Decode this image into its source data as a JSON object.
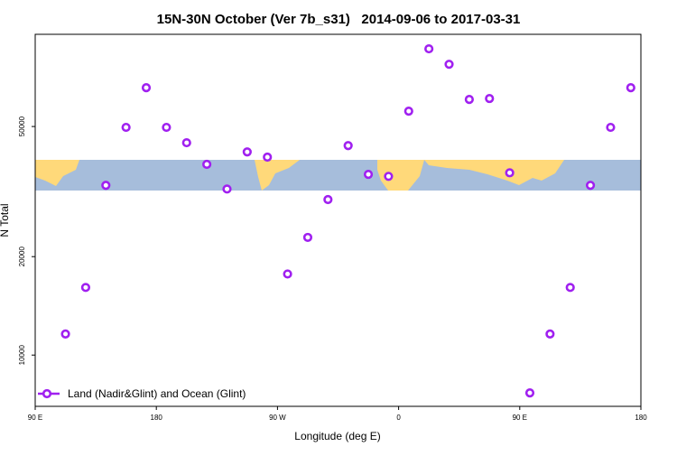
{
  "chart_data": {
    "type": "scatter",
    "title": "15N-30N October (Ver 7b_s31)   2014-09-06 to 2017-03-31",
    "x_label": "Longitude (deg E)",
    "y_label": "N Total",
    "xlim": [
      90,
      540
    ],
    "xticks": [
      {
        "value": 90,
        "label": "90 E"
      },
      {
        "value": 180,
        "label": "180"
      },
      {
        "value": 270,
        "label": "90 W"
      },
      {
        "value": 360,
        "label": "0"
      },
      {
        "value": 450,
        "label": "90 E"
      },
      {
        "value": 540,
        "label": "180"
      }
    ],
    "ylim": [
      6970,
      95700
    ],
    "y_log": true,
    "yticks": [
      10000,
      20000,
      50000
    ],
    "legend_position": "lower left",
    "series": [
      {
        "name": "Land (Nadir&Glint) and Ocean (Glint)",
        "color": "#a020f0",
        "x": [
          112.5,
          127.5,
          142.5,
          157.5,
          172.5,
          187.5,
          202.5,
          217.5,
          232.5,
          247.5,
          262.5,
          277.5,
          292.5,
          307.5,
          322.5,
          337.5,
          352.5,
          367.5,
          382.5,
          397.5,
          412.5,
          427.5,
          442.5,
          457.5,
          472.5,
          487.5,
          502.5,
          517.5,
          532.5
        ],
        "values": [
          11600,
          16100,
          33050,
          49700,
          65700,
          49700,
          44600,
          38300,
          32200,
          41800,
          40300,
          17700,
          22900,
          29900,
          43700,
          35700,
          35200,
          55700,
          86400,
          77500,
          60500,
          60900,
          36100,
          7660,
          11600,
          16100,
          33050,
          49700,
          65700
        ]
      }
    ]
  }
}
